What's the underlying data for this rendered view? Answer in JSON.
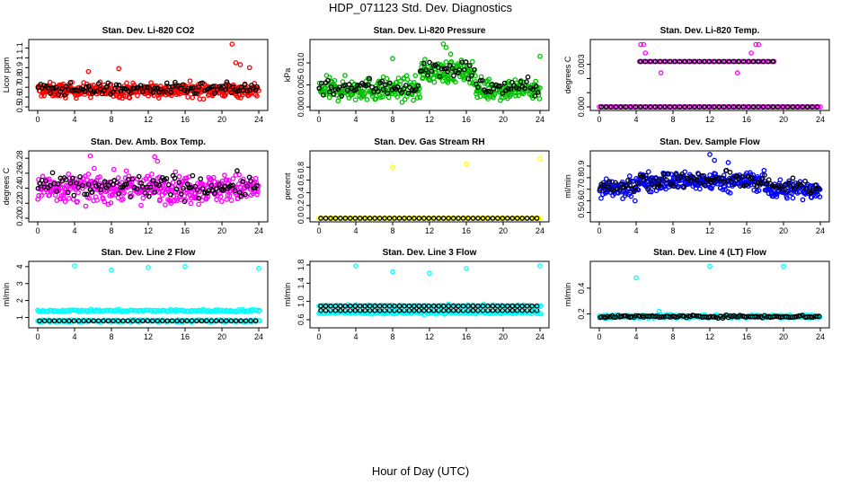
{
  "figure": {
    "title": "HDP_071123  Std. Dev. Diagnostics",
    "xlabel": "Hour of Day (UTC)"
  },
  "chart_data": [
    {
      "type": "scatter",
      "title": "Stan. Dev. Li-820 CO2",
      "ylabel": "Licor ppm",
      "xlim": [
        0,
        24
      ],
      "ylim": [
        0.5,
        1.15
      ],
      "xticks": [
        0,
        4,
        8,
        12,
        16,
        20,
        24
      ],
      "yticks": [
        0.5,
        0.6,
        0.7,
        0.8,
        0.9,
        1.0,
        1.1
      ],
      "ytick_labels": [
        "0.5",
        "0.6",
        "0.7",
        "0.8",
        "0.9",
        "1",
        "1.1"
      ],
      "color": "#ff0000",
      "series_main": {
        "base": 0.67,
        "spread": 0.07,
        "n": 420
      },
      "series_black": {
        "base": 0.68,
        "spread": 0.06,
        "n": 110
      },
      "outliers": [
        [
          21.1,
          1.14
        ],
        [
          21.5,
          0.95
        ],
        [
          22.0,
          0.93
        ],
        [
          8.8,
          0.89
        ],
        [
          5.5,
          0.86
        ],
        [
          23.0,
          0.9
        ]
      ]
    },
    {
      "type": "scatter",
      "title": "Stan. Dev. Li-820 Pressure",
      "ylabel": "kPa",
      "xlim": [
        0,
        24
      ],
      "ylim": [
        0.0,
        0.0145
      ],
      "xticks": [
        0,
        4,
        8,
        12,
        16,
        20,
        24
      ],
      "yticks": [
        0.0,
        0.005,
        0.01
      ],
      "ytick_labels": [
        "0.000",
        "0.005",
        "0.010"
      ],
      "color": "#00c000",
      "series_main": {
        "base": 0.004,
        "spread": 0.0025,
        "n": 420
      },
      "series_black": {
        "base": 0.0045,
        "spread": 0.002,
        "n": 110
      },
      "outliers": [
        [
          13.5,
          0.0143
        ],
        [
          13.8,
          0.0135
        ],
        [
          8.0,
          0.011
        ],
        [
          24.0,
          0.0115
        ],
        [
          14.3,
          0.012
        ]
      ]
    },
    {
      "type": "scatter",
      "title": "Stan. Dev. Li-820 Temp.",
      "ylabel": "degrees C",
      "xlim": [
        0,
        24
      ],
      "ylim": [
        0.0,
        0.0045
      ],
      "xticks": [
        0,
        4,
        8,
        12,
        16,
        20,
        24
      ],
      "yticks": [
        0.0,
        0.001,
        0.002,
        0.003
      ],
      "ytick_labels": [
        "0.000",
        "",
        "",
        "0.003"
      ],
      "color": "#ff00ff",
      "levels": [
        0.0,
        0.0032
      ],
      "upper_range": [
        4.3,
        19.0
      ],
      "outliers": [
        [
          4.5,
          0.0044
        ],
        [
          4.8,
          0.0044
        ],
        [
          5.0,
          0.0038
        ],
        [
          17.0,
          0.0044
        ],
        [
          17.3,
          0.0044
        ],
        [
          16.5,
          0.0038
        ],
        [
          6.7,
          0.0024
        ],
        [
          15.0,
          0.0024
        ]
      ]
    },
    {
      "type": "scatter",
      "title": "Stan. Dev. Amb. Box Temp.",
      "ylabel": "degrees C",
      "xlim": [
        0,
        24
      ],
      "ylim": [
        0.2,
        0.285
      ],
      "xticks": [
        0,
        4,
        8,
        12,
        16,
        20,
        24
      ],
      "yticks": [
        0.2,
        0.22,
        0.24,
        0.26,
        0.28
      ],
      "ytick_labels": [
        "0.20",
        "0.22",
        "0.24",
        "0.26",
        "0.28"
      ],
      "color": "#ff00ff",
      "series_main": {
        "base": 0.24,
        "spread": 0.018,
        "n": 420
      },
      "series_black": {
        "base": 0.242,
        "spread": 0.015,
        "n": 110
      },
      "outliers": [
        [
          5.7,
          0.283
        ],
        [
          12.7,
          0.282
        ],
        [
          13.0,
          0.276
        ]
      ]
    },
    {
      "type": "scatter",
      "title": "Stan. Dev. Gas Stream RH",
      "ylabel": "percent",
      "xlim": [
        0,
        24
      ],
      "ylim": [
        0.0,
        1.0
      ],
      "xticks": [
        0,
        4,
        8,
        12,
        16,
        20,
        24
      ],
      "yticks": [
        0.0,
        0.2,
        0.4,
        0.6,
        0.8
      ],
      "ytick_labels": [
        "0.0",
        "0.2",
        "0.4",
        "0.6",
        "0.8"
      ],
      "color": "#ffff00",
      "levels": [
        0.0
      ],
      "outliers": [
        [
          8.0,
          0.8
        ],
        [
          16.0,
          0.85
        ],
        [
          24.0,
          0.93
        ]
      ]
    },
    {
      "type": "scatter",
      "title": "Stan. Dev. Sample Flow",
      "ylabel": "ml/min",
      "xlim": [
        0,
        24
      ],
      "ylim": [
        0.45,
        1.0
      ],
      "xticks": [
        0,
        4,
        8,
        12,
        16,
        20,
        24
      ],
      "yticks": [
        0.5,
        0.6,
        0.7,
        0.8,
        0.9
      ],
      "ytick_labels": [
        "0.5",
        "0.6",
        "0.7",
        "0.8",
        "0.9"
      ],
      "color": "#0000ff",
      "series_main": {
        "base": 0.7,
        "spread": 0.08,
        "n": 420
      },
      "series_black": {
        "base": 0.72,
        "spread": 0.06,
        "n": 110
      },
      "outliers": [
        [
          12.0,
          1.0
        ],
        [
          12.5,
          0.95
        ],
        [
          14.0,
          0.93
        ]
      ]
    },
    {
      "type": "scatter",
      "title": "Stan. Dev. Line 2 Flow",
      "ylabel": "ml/min",
      "xlim": [
        0,
        24
      ],
      "ylim": [
        0.6,
        4.1
      ],
      "xticks": [
        0,
        4,
        8,
        12,
        16,
        20,
        24
      ],
      "yticks": [
        1,
        2,
        3,
        4
      ],
      "ytick_labels": [
        "1",
        "2",
        "3",
        "4"
      ],
      "color": "#00ffff",
      "levels": [
        1.4,
        0.8
      ],
      "outliers": [
        [
          4.0,
          4.05
        ],
        [
          8.0,
          3.8
        ],
        [
          12.0,
          3.95
        ],
        [
          16.0,
          4.0
        ],
        [
          24.0,
          3.9
        ]
      ]
    },
    {
      "type": "scatter",
      "title": "Stan. Dev. Line 3 Flow",
      "ylabel": "ml/min",
      "xlim": [
        0,
        24
      ],
      "ylim": [
        0.5,
        1.8
      ],
      "xticks": [
        0,
        4,
        8,
        12,
        16,
        20,
        24
      ],
      "yticks": [
        0.6,
        1.0,
        1.4,
        1.8
      ],
      "ytick_labels": [
        "0.6",
        "1.0",
        "1.4",
        "1.8"
      ],
      "color": "#00ffff",
      "levels": [
        0.75,
        0.9
      ],
      "outliers": [
        [
          4.0,
          1.78
        ],
        [
          8.0,
          1.65
        ],
        [
          12.0,
          1.62
        ],
        [
          16.0,
          1.72
        ],
        [
          24.0,
          1.78
        ]
      ]
    },
    {
      "type": "scatter",
      "title": "Stan. Dev. Line 4 (LT) Flow",
      "ylabel": "ml/min",
      "xlim": [
        0,
        24
      ],
      "ylim": [
        0.12,
        0.58
      ],
      "xticks": [
        0,
        4,
        8,
        12,
        16,
        20,
        24
      ],
      "yticks": [
        0.2,
        0.4
      ],
      "ytick_labels": [
        "0.2",
        "0.4"
      ],
      "color": "#00ffff",
      "series_main": {
        "base": 0.18,
        "spread": 0.012,
        "n": 420
      },
      "series_black": {
        "base": 0.18,
        "spread": 0.01,
        "n": 110
      },
      "outliers": [
        [
          4.0,
          0.48
        ],
        [
          12.0,
          0.57
        ],
        [
          20.0,
          0.57
        ],
        [
          6.5,
          0.22
        ]
      ]
    }
  ]
}
